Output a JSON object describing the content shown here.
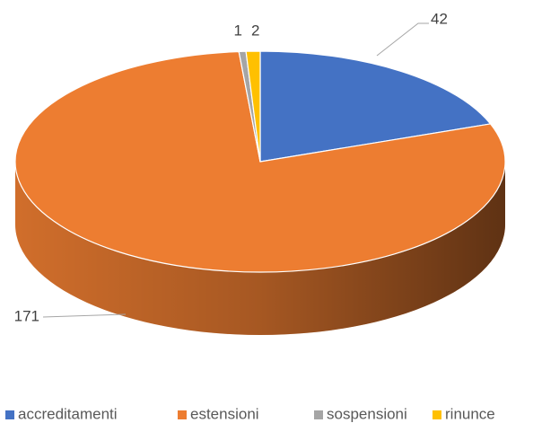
{
  "chart_data": {
    "type": "pie",
    "categories": [
      "accreditamenti",
      "estensioni",
      "sospensioni",
      "rinunce"
    ],
    "values": [
      42,
      171,
      1,
      2
    ],
    "colors": [
      "#4472c4",
      "#ed7d31",
      "#a5a5a5",
      "#ffc000"
    ],
    "legend": "bottom"
  }
}
